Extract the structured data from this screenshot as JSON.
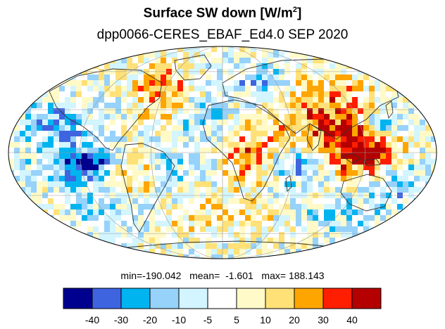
{
  "title": {
    "prefix": "Surface SW down [W/m",
    "sup": "2",
    "suffix": "]"
  },
  "subtitle": "dpp0066-CERES_EBAF_Ed4.0  SEP 2020",
  "stats": {
    "text": "min=-190.042   mean=  -1.601   max= 188.143"
  },
  "colorbar": {
    "colors": [
      "#00008f",
      "#3f64e0",
      "#00b4f0",
      "#96d2fa",
      "#d2f5ff",
      "#ffffff",
      "#fffac8",
      "#ffe178",
      "#ffa500",
      "#ff1e00",
      "#b40000"
    ],
    "labels": [
      "-40",
      "-30",
      "-20",
      "-10",
      "-5",
      "5",
      "10",
      "20",
      "30",
      "40"
    ]
  },
  "map": {
    "projection": "mollweide",
    "grid": true
  }
}
